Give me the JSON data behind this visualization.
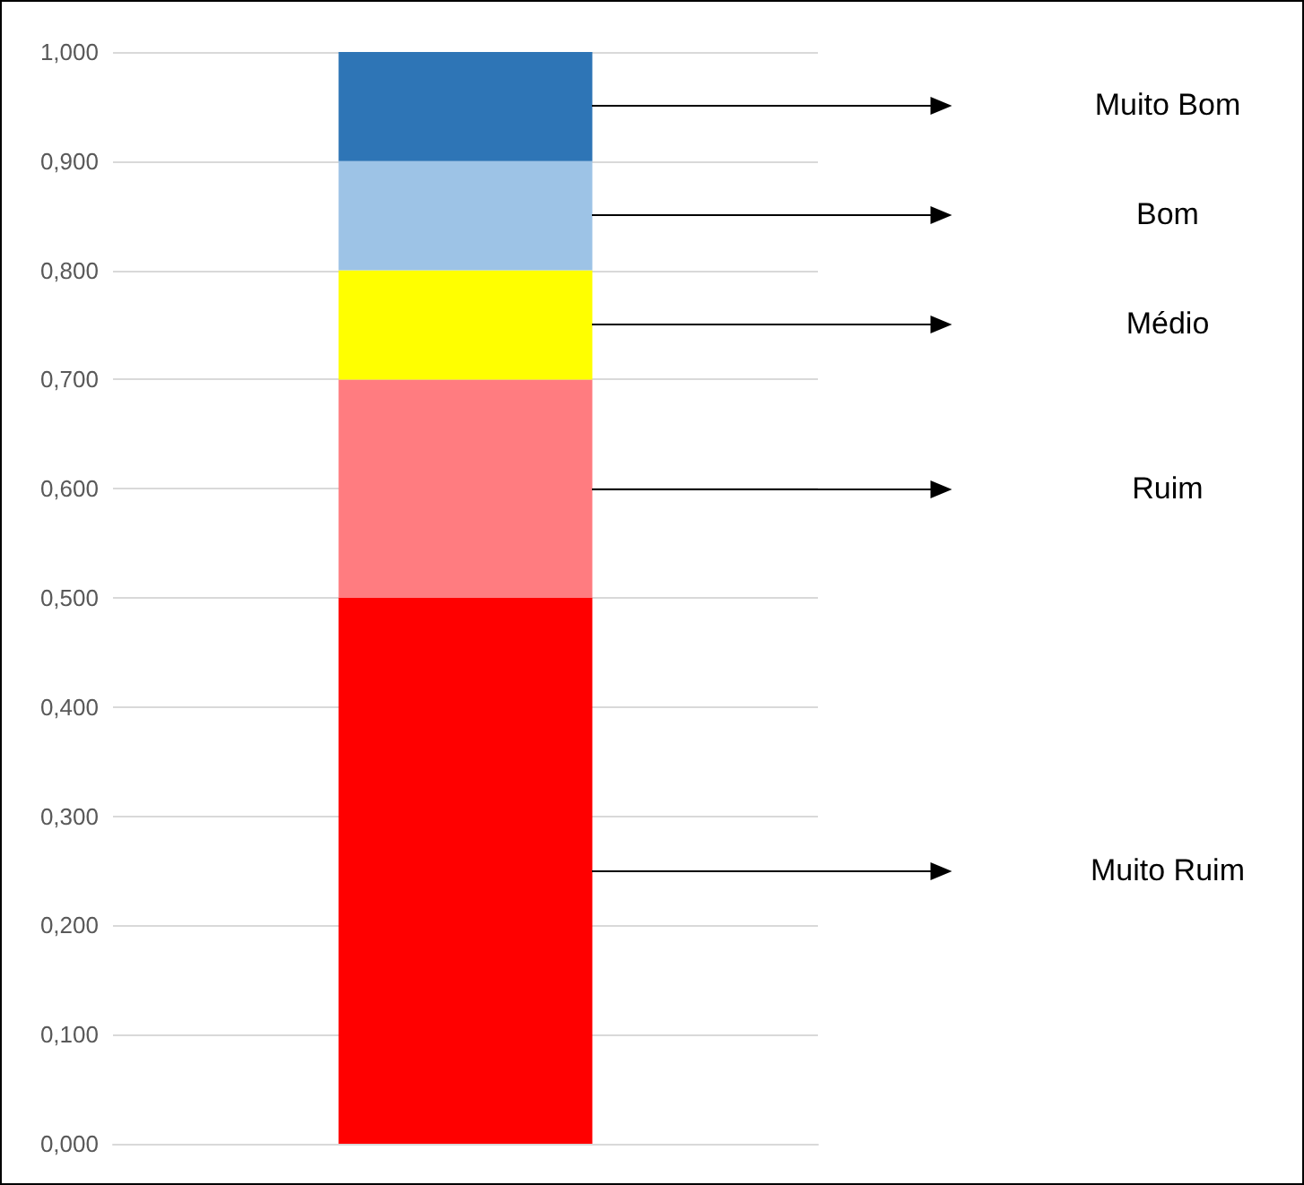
{
  "chart_data": {
    "type": "bar",
    "stacked": true,
    "categories": [
      null
    ],
    "series": [
      {
        "name": "Muito Ruim",
        "color": "#ff0000",
        "values": [
          0.5
        ]
      },
      {
        "name": "Ruim",
        "color": "#ff7c80",
        "values": [
          0.2
        ]
      },
      {
        "name": "Médio",
        "color": "#ffff00",
        "values": [
          0.1
        ]
      },
      {
        "name": "Bom",
        "color": "#9dc3e6",
        "values": [
          0.1
        ]
      },
      {
        "name": "Muito Bom",
        "color": "#2e75b6",
        "values": [
          0.1
        ]
      }
    ],
    "ylim": [
      0,
      1
    ],
    "yticks": [
      {
        "value": 0,
        "label": "0,000"
      },
      {
        "value": 0.1,
        "label": "0,100"
      },
      {
        "value": 0.2,
        "label": "0,200"
      },
      {
        "value": 0.3,
        "label": "0,300"
      },
      {
        "value": 0.4,
        "label": "0,400"
      },
      {
        "value": 0.5,
        "label": "0,500"
      },
      {
        "value": 0.6,
        "label": "0,600"
      },
      {
        "value": 0.7,
        "label": "0,700"
      },
      {
        "value": 0.8,
        "label": "0,800"
      },
      {
        "value": 0.9,
        "label": "0,900"
      },
      {
        "value": 1,
        "label": "1,000"
      }
    ],
    "grid": "y",
    "legend": false
  }
}
